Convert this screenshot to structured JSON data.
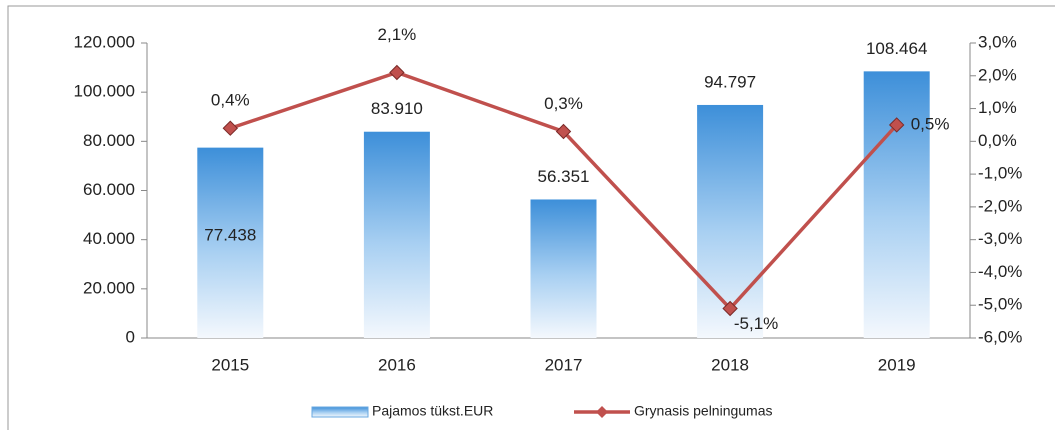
{
  "chart_data": {
    "type": "bar",
    "categories": [
      "2015",
      "2016",
      "2017",
      "2018",
      "2019"
    ],
    "series": [
      {
        "name": "Pajamos tükst.EUR",
        "color": "#3d8fd9",
        "values": [
          77438,
          83910,
          56351,
          94797,
          108464
        ],
        "value_labels": [
          "77.438",
          "83.910",
          "56.351",
          "94.797",
          "108.464"
        ]
      },
      {
        "name": "Grynasis pelningumas",
        "color": "#c0504d",
        "type": "line",
        "axis": "y2",
        "values": [
          0.4,
          2.1,
          0.3,
          -5.1,
          0.5
        ],
        "value_labels": [
          "0,4%",
          "2,1%",
          "0,3%",
          "-5,1%",
          "0,5%"
        ]
      }
    ],
    "ylim": [
      0,
      120000
    ],
    "yticks": [
      0,
      {
        "value": 20000,
        "label": "20.000"
      },
      {
        "value": 40000,
        "label": "40.000"
      },
      {
        "value": 60000,
        "label": "60.000"
      },
      {
        "value": 80000,
        "label": "80.000"
      },
      {
        "value": 100000,
        "label": "100.000"
      },
      {
        "value": 120000,
        "label": "120.000"
      }
    ],
    "y2lim": [
      -6,
      3
    ],
    "y2ticks": [
      {
        "value": -6,
        "label": "-6,0%"
      },
      {
        "value": -5,
        "label": "-5,0%"
      },
      {
        "value": -4,
        "label": "-4,0%"
      },
      {
        "value": -3,
        "label": "-3,0%"
      },
      {
        "value": -2,
        "label": "-2,0%"
      },
      {
        "value": -1,
        "label": "-1,0%"
      },
      {
        "value": 0,
        "label": "0,0%"
      },
      {
        "value": 1,
        "label": "1,0%"
      },
      {
        "value": 2,
        "label": "2,0%"
      },
      {
        "value": 3,
        "label": "3,0%"
      }
    ]
  }
}
